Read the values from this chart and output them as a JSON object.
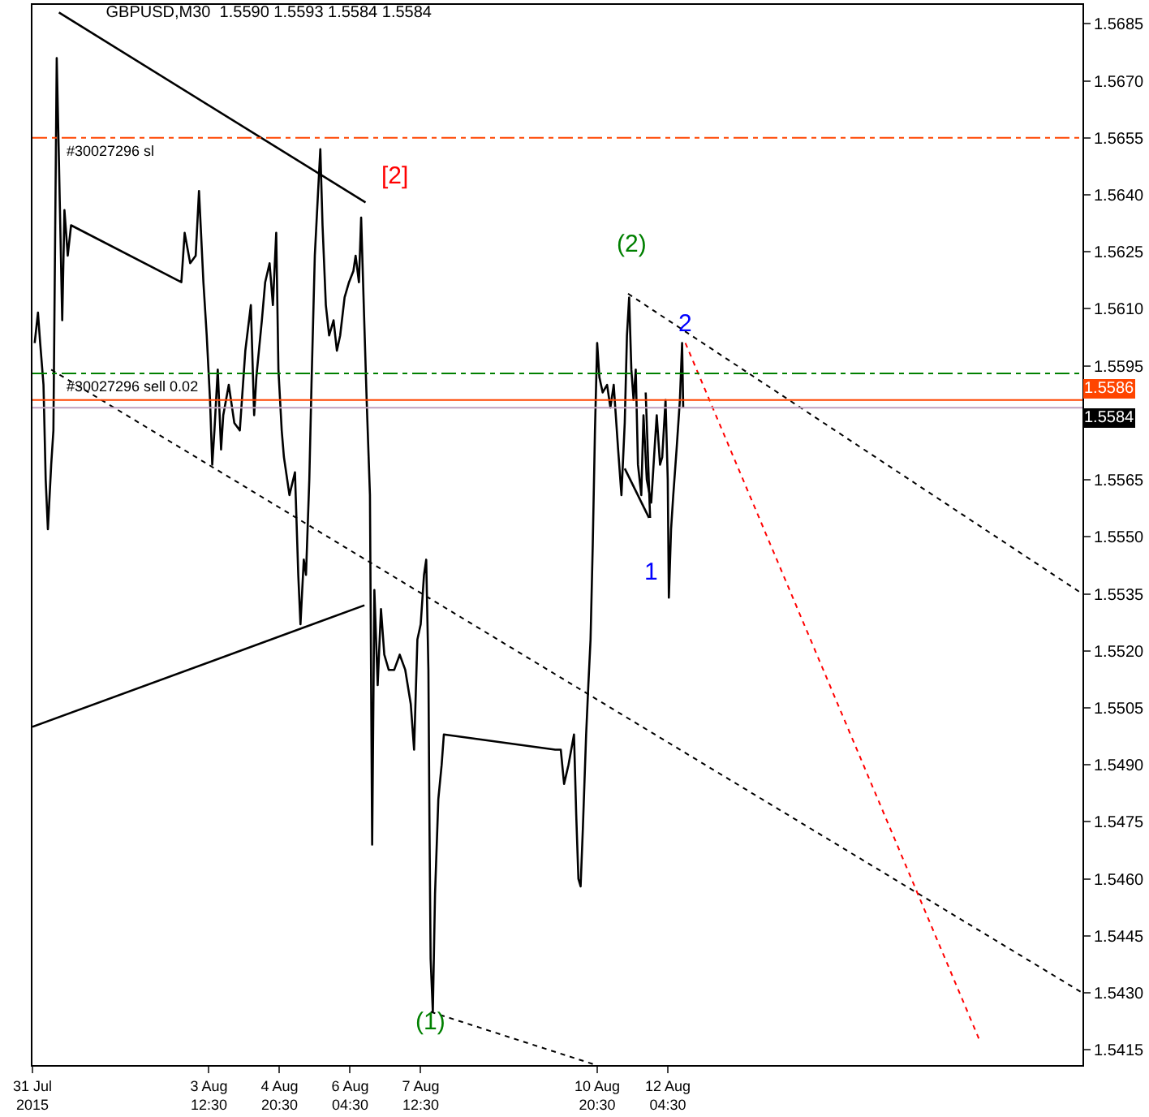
{
  "chart_data": {
    "type": "line",
    "title": "GBPUSD,M30  1.5590 1.5593 1.5584 1.5584",
    "xlim": [
      "2015-07-31T04:30",
      "2015-08-20T00:30"
    ],
    "xticks": [
      {
        "value": "2015-07-31T04:30",
        "label": "31 Jul 2015"
      },
      {
        "value": "2015-08-03T12:30",
        "label": "3 Aug 12:30"
      },
      {
        "value": "2015-08-04T20:30",
        "label": "4 Aug 20:30"
      },
      {
        "value": "2015-08-06T04:30",
        "label": "6 Aug 04:30"
      },
      {
        "value": "2015-08-07T12:30",
        "label": "7 Aug 12:30"
      },
      {
        "value": "2015-08-10T20:30",
        "label": "10 Aug 20:30"
      },
      {
        "value": "2015-08-12T04:30",
        "label": "12 Aug 04:30"
      }
    ],
    "ylim": [
      1.5411,
      1.569
    ],
    "yticks": [
      1.5415,
      {
        "value": 1.543,
        "label": "1.5430"
      },
      1.5445,
      {
        "value": 1.546,
        "label": "1.5460"
      },
      1.5475,
      {
        "value": 1.549,
        "label": "1.5490"
      },
      1.5505,
      {
        "value": 1.552,
        "label": "1.5520"
      },
      1.5535,
      {
        "value": 1.555,
        "label": "1.5550"
      },
      1.5565,
      {
        "value": 1.558,
        "label": null
      },
      1.5595,
      {
        "value": 1.561,
        "label": "1.5610"
      },
      1.5625,
      {
        "value": 1.564,
        "label": "1.5640"
      },
      1.5655,
      {
        "value": 1.567,
        "label": "1.5670"
      },
      1.5685
    ],
    "grid": false,
    "series": [
      {
        "color": "#000000",
        "x": [
          "2015-07-31T05:30",
          "2015-07-31T07:00",
          "2015-07-31T08:00",
          "2015-07-31T09:30",
          "2015-07-31T10:30",
          "2015-07-31T11:30",
          "2015-07-31T13:00",
          "2015-07-31T14:00",
          "2015-07-31T15:30",
          "2015-07-31T16:30",
          "2015-07-31T18:00",
          "2015-07-31T19:00",
          "2015-07-31T20:30",
          "2015-07-31T22:00",
          "2015-08-03T00:00",
          "2015-08-03T01:30",
          "2015-08-03T04:00",
          "2015-08-03T06:30",
          "2015-08-03T08:00",
          "2015-08-03T10:00",
          "2015-08-03T11:30",
          "2015-08-03T13:00",
          "2015-08-03T14:00",
          "2015-08-03T15:00",
          "2015-08-03T16:30",
          "2015-08-03T18:00",
          "2015-08-03T19:00",
          "2015-08-03T21:30",
          "2015-08-04T00:00",
          "2015-08-04T02:30",
          "2015-08-04T05:00",
          "2015-08-04T07:30",
          "2015-08-04T09:00",
          "2015-08-04T10:00",
          "2015-08-04T12:30",
          "2015-08-04T14:00",
          "2015-08-04T16:00",
          "2015-08-04T17:30",
          "2015-08-04T19:00",
          "2015-08-04T20:00",
          "2015-08-04T21:30",
          "2015-08-04T22:30",
          "2015-08-05T01:00",
          "2015-08-05T03:30",
          "2015-08-05T05:00",
          "2015-08-05T06:00",
          "2015-08-05T07:30",
          "2015-08-05T08:30",
          "2015-08-05T10:00",
          "2015-08-05T11:00",
          "2015-08-05T12:30",
          "2015-08-05T14:00",
          "2015-08-05T15:00",
          "2015-08-05T16:00",
          "2015-08-05T17:30",
          "2015-08-05T19:00",
          "2015-08-05T21:00",
          "2015-08-05T22:30",
          "2015-08-06T00:00",
          "2015-08-06T02:00",
          "2015-08-06T04:00",
          "2015-08-06T06:00",
          "2015-08-06T07:00",
          "2015-08-06T08:30",
          "2015-08-06T09:30",
          "2015-08-06T11:00",
          "2015-08-06T12:00",
          "2015-08-06T13:30",
          "2015-08-06T14:30",
          "2015-08-06T15:30",
          "2015-08-06T17:00",
          "2015-08-06T18:30",
          "2015-08-06T20:00",
          "2015-08-06T22:00",
          "2015-08-07T00:30",
          "2015-08-07T03:00",
          "2015-08-07T05:30",
          "2015-08-07T08:00",
          "2015-08-07T09:30",
          "2015-08-07T11:00",
          "2015-08-07T12:30",
          "2015-08-07T14:00",
          "2015-08-07T15:00",
          "2015-08-07T16:00",
          "2015-08-07T16:30",
          "2015-08-07T17:00",
          "2015-08-07T18:00",
          "2015-08-07T19:00",
          "2015-08-07T20:30",
          "2015-08-07T22:00",
          "2015-08-07T23:00",
          "2015-08-10T01:30",
          "2015-08-10T04:00",
          "2015-08-10T05:30",
          "2015-08-10T07:30",
          "2015-08-10T10:00",
          "2015-08-10T11:00",
          "2015-08-10T12:00",
          "2015-08-10T13:00",
          "2015-08-10T14:00",
          "2015-08-10T15:30",
          "2015-08-10T16:30",
          "2015-08-10T17:30",
          "2015-08-10T18:30",
          "2015-08-10T19:30",
          "2015-08-10T20:30",
          "2015-08-10T21:30",
          "2015-08-10T23:00",
          "2015-08-11T01:00",
          "2015-08-11T02:30",
          "2015-08-11T04:00",
          "2015-08-11T06:00",
          "2015-08-11T07:30",
          "2015-08-11T09:00",
          "2015-08-11T10:00",
          "2015-08-11T11:00",
          "2015-08-11T12:00",
          "2015-08-11T13:00",
          "2015-08-11T14:00",
          "2015-08-11T15:00",
          "2015-08-11T16:30",
          "2015-08-11T17:30",
          "2015-08-11T19:00",
          "2015-08-11T21:00",
          "2015-08-11T22:30",
          "2015-08-11T23:30",
          "2015-08-12T01:00",
          "2015-08-12T02:00",
          "2015-08-12T03:30",
          "2015-08-12T04:30",
          "2015-08-12T05:00",
          "2015-08-12T06:00",
          "2015-08-12T07:00",
          "2015-08-12T08:30",
          "2015-08-12T10:00",
          "2015-08-12T11:00",
          "2015-08-12T11:30"
        ],
        "values": [
          1.5601,
          1.5609,
          1.5601,
          1.559,
          1.5565,
          1.5552,
          1.5569,
          1.5578,
          1.5676,
          1.5649,
          1.5607,
          1.5636,
          1.5624,
          1.5632,
          1.5617,
          1.563,
          1.5622,
          1.5624,
          1.5641,
          1.5617,
          1.5603,
          1.5586,
          1.5569,
          1.5578,
          1.5594,
          1.5573,
          1.5582,
          1.559,
          1.558,
          1.5578,
          1.5599,
          1.5611,
          1.5582,
          1.5592,
          1.5607,
          1.5617,
          1.5622,
          1.5611,
          1.563,
          1.5594,
          1.5578,
          1.5571,
          1.5561,
          1.5567,
          1.554,
          1.5527,
          1.5544,
          1.554,
          1.5565,
          1.559,
          1.5624,
          1.5641,
          1.5652,
          1.5632,
          1.5611,
          1.5603,
          1.5607,
          1.5599,
          1.5603,
          1.5613,
          1.5617,
          1.562,
          1.5624,
          1.5617,
          1.5634,
          1.5605,
          1.5586,
          1.5561,
          1.5469,
          1.5536,
          1.5511,
          1.5531,
          1.5519,
          1.5515,
          1.5515,
          1.5519,
          1.5515,
          1.5506,
          1.5494,
          1.5523,
          1.5527,
          1.554,
          1.5544,
          1.5515,
          1.5473,
          1.5439,
          1.5425,
          1.5456,
          1.5481,
          1.549,
          1.5498,
          1.5494,
          1.5494,
          1.5485,
          1.549,
          1.5498,
          1.5477,
          1.546,
          1.5458,
          1.5473,
          1.5498,
          1.5511,
          1.5523,
          1.5548,
          1.5578,
          1.5601,
          1.5592,
          1.5588,
          1.559,
          1.5584,
          1.559,
          1.5573,
          1.5561,
          1.558,
          1.5603,
          1.5613,
          1.5594,
          1.5586,
          1.5594,
          1.5569,
          1.5561,
          1.5582,
          1.5565,
          1.5559,
          1.5573,
          1.5582,
          1.5569,
          1.5571,
          1.5586,
          1.5565,
          1.5534,
          1.5552,
          1.5561,
          1.5573,
          1.5586,
          1.5601,
          1.5584
        ]
      },
      {
        "color": "#000000",
        "x": [
          "2015-07-31T16:30",
          "2015-08-06T11:30"
        ],
        "values": [
          1.5688,
          1.5638
        ],
        "line_style": "solid"
      },
      {
        "color": "#000000",
        "x": [
          "2015-07-31T04:30",
          "2015-08-06T11:00"
        ],
        "values": [
          1.55,
          1.5532
        ],
        "line_style": "solid"
      },
      {
        "color": "#000000",
        "x": [
          "2015-07-31T13:00",
          "2015-08-20T00:30"
        ],
        "values": [
          1.5594,
          1.543
        ],
        "line_style": "dotted"
      },
      {
        "color": "#000000",
        "x": [
          "2015-08-07T17:00",
          "2015-08-10T20:00"
        ],
        "values": [
          1.5425,
          1.5411
        ],
        "line_style": "dotted"
      },
      {
        "color": "#000000",
        "x": [
          "2015-08-11T10:30",
          "2015-08-20T00:30"
        ],
        "values": [
          1.5614,
          1.5535
        ],
        "line_style": "dotted"
      },
      {
        "color": "#ff0000",
        "x": [
          "2015-08-12T12:30",
          "2015-08-18T01:30"
        ],
        "values": [
          1.5601,
          1.5418
        ],
        "line_style": "dotted"
      },
      {
        "color": "#000000",
        "x": [
          "2015-08-11T09:00",
          "2015-08-11T20:00"
        ],
        "values": [
          1.5568,
          1.5555
        ],
        "line_style": "solid"
      },
      {
        "color": "#000000",
        "x": [
          "2015-08-11T18:30",
          "2015-08-11T20:30"
        ],
        "values": [
          1.5588,
          1.5555
        ],
        "line_style": "solid"
      }
    ],
    "ref_lines": [
      {
        "axis": "y",
        "value": 1.5655,
        "label": "#30027296 sl",
        "color": "#ff4500",
        "line_style": "dashed"
      },
      {
        "axis": "y",
        "value": 1.5593,
        "label": "#30027296 sell 0.02",
        "color": "#008000",
        "line_style": "dashed"
      },
      {
        "axis": "y",
        "value": 1.5586,
        "label": "1.5586",
        "color": "#ff4500",
        "line_style": "solid"
      },
      {
        "axis": "y",
        "value": 1.5584,
        "label": "1.5584",
        "color": "#c0a0c0",
        "line_style": "solid"
      }
    ],
    "annotations": [
      "[2]",
      "(2)",
      "2",
      "1",
      "(1)"
    ]
  }
}
